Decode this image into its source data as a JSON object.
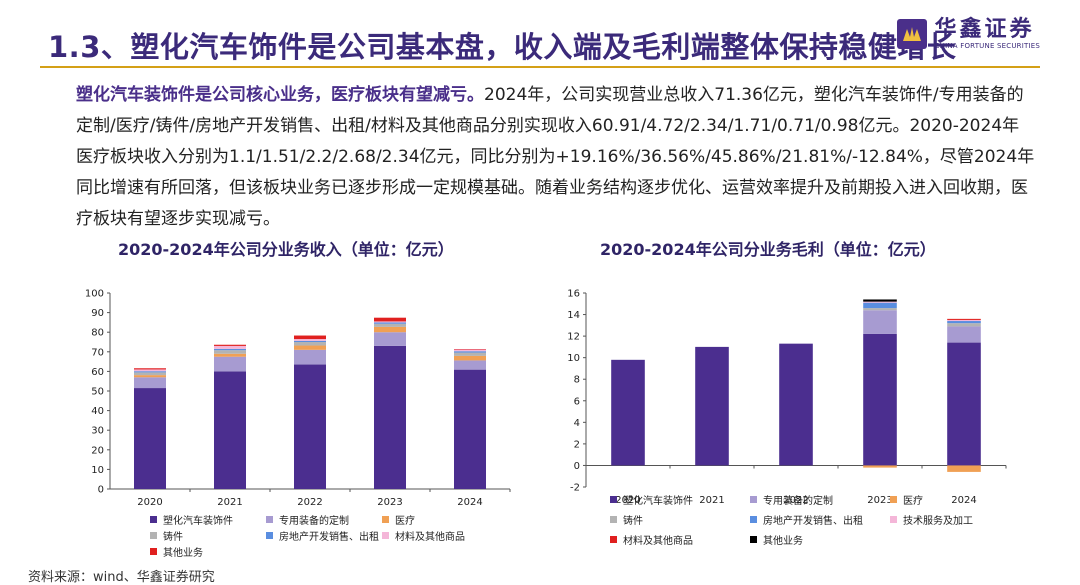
{
  "header": {
    "title": "1.3、塑化汽车饰件是公司基本盘，收入端及毛利端整体保持稳健增长",
    "brand_cn": "华鑫证券",
    "brand_en": "CHINA FORTUNE SECURITIES"
  },
  "paragraph": {
    "lead": "塑化汽车装饰件是公司核心业务，医疗板块有望减亏。",
    "body": "2024年，公司实现营业总收入71.36亿元，塑化汽车装饰件/专用装备的定制/医疗/铸件/房地产开发销售、出租/材料及其他商品分别实现收入60.91/4.72/2.34/1.71/0.71/0.98亿元。2020-2024年医疗板块收入分别为1.1/1.51/2.2/2.68/2.34亿元，同比分别为+19.16%/36.56%/45.86%/21.81%/-12.84%，尽管2024年同比增速有所回落，但该板块业务已逐步形成一定规模基础。随着业务结构逐步优化、运营效率提升及前期投入进入回收期，医疗板块有望逐步实现减亏。"
  },
  "source": "资料来源：wind、华鑫证券研究",
  "colors": {
    "auto": "#4b2e8f",
    "equip": "#a79bd1",
    "medical": "#f0a054",
    "casting": "#b3b3b3",
    "realestate": "#5a8ee0",
    "materials": "#f4b6d8",
    "other": "#e0201f",
    "tech": "#f4b6d8",
    "other2": "#000000"
  },
  "chart_data": [
    {
      "type": "bar",
      "stacked": true,
      "title": "2020-2024年公司分业务收入（单位：亿元）",
      "categories": [
        "2020",
        "2021",
        "2022",
        "2023",
        "2024"
      ],
      "ylim": [
        0,
        100
      ],
      "yticks": [
        "0",
        "10",
        "20",
        "30",
        "40",
        "50",
        "60",
        "70",
        "80",
        "90",
        "100"
      ],
      "series": [
        {
          "name": "塑化汽车装饰件",
          "color": "#4b2e8f",
          "values": [
            51.5,
            60.0,
            63.5,
            73.0,
            60.9
          ]
        },
        {
          "name": "专用装备的定制",
          "color": "#a79bd1",
          "values": [
            5.5,
            7.5,
            7.5,
            7.0,
            4.7
          ]
        },
        {
          "name": "医疗",
          "color": "#f0a054",
          "values": [
            1.1,
            1.5,
            2.2,
            2.7,
            2.3
          ]
        },
        {
          "name": "铸件",
          "color": "#b3b3b3",
          "values": [
            1.4,
            1.8,
            1.8,
            1.6,
            1.7
          ]
        },
        {
          "name": "房地产开发销售、出租",
          "color": "#5a8ee0",
          "values": [
            0.6,
            0.7,
            0.6,
            0.7,
            0.7
          ]
        },
        {
          "name": "材料及其他商品",
          "color": "#f4b6d8",
          "values": [
            0.9,
            1.5,
            0.9,
            0.5,
            1.0
          ]
        },
        {
          "name": "其他业务",
          "color": "#e0201f",
          "values": [
            0.6,
            0.6,
            1.8,
            1.9,
            0.1
          ]
        }
      ]
    },
    {
      "type": "bar",
      "stacked": true,
      "title": "2020-2024年公司分业务毛利（单位：亿元）",
      "categories": [
        "2020",
        "2021",
        "2022",
        "2023",
        "2024"
      ],
      "ylim": [
        -2,
        16
      ],
      "yticks": [
        "-2",
        "0",
        "2",
        "4",
        "6",
        "8",
        "10",
        "12",
        "14",
        "16"
      ],
      "series": [
        {
          "name": "塑化汽车装饰件",
          "color": "#4b2e8f",
          "values": [
            9.8,
            11.0,
            11.3,
            12.2,
            11.4
          ]
        },
        {
          "name": "专用装备的定制",
          "color": "#a79bd1",
          "values": [
            0,
            0,
            0,
            2.2,
            1.5
          ]
        },
        {
          "name": "医疗",
          "color": "#f0a054",
          "values": [
            0,
            0,
            0,
            -0.2,
            -0.6
          ]
        },
        {
          "name": "铸件",
          "color": "#b3b3b3",
          "values": [
            0,
            0,
            0,
            0.2,
            0.3
          ]
        },
        {
          "name": "房地产开发销售、出租",
          "color": "#5a8ee0",
          "values": [
            0,
            0,
            0,
            0.5,
            0.2
          ]
        },
        {
          "name": "技术服务及加工",
          "color": "#f4b6d8",
          "values": [
            0,
            0,
            0,
            0.1,
            0.1
          ]
        },
        {
          "name": "材料及其他商品",
          "color": "#e0201f",
          "values": [
            0,
            0,
            0,
            0,
            0.1
          ]
        },
        {
          "name": "其他业务",
          "color": "#000000",
          "values": [
            0,
            0,
            0,
            0.2,
            0
          ]
        }
      ]
    }
  ]
}
